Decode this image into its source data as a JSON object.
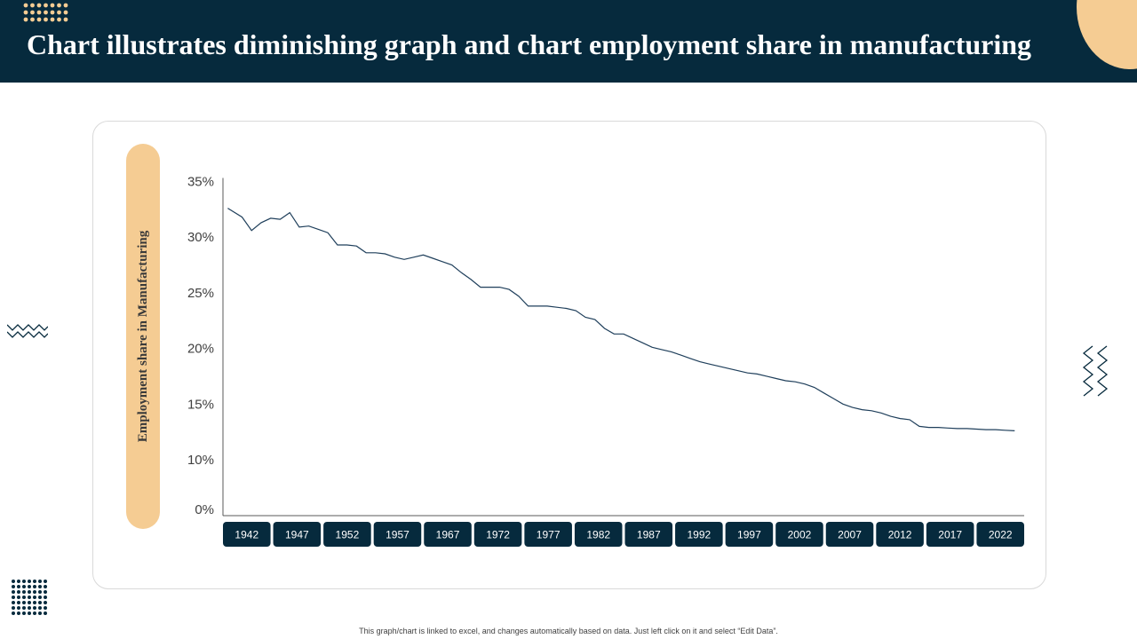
{
  "header": {
    "title": "Chart illustrates diminishing graph and chart employment share in manufacturing"
  },
  "footer": {
    "note": "This graph/chart is linked to excel, and changes automatically based on data. Just left click on it and select “Edit Data”."
  },
  "colors": {
    "header_bg": "#062a3d",
    "accent": "#f5cc93",
    "line": "#1f3f5b",
    "tick_box": "#062a3d"
  },
  "icons": {
    "top_dots": "dot-grid-icon",
    "left_zigzag": "zigzag-icon",
    "right_zigzag": "zigzag-vertical-icon",
    "bottom_dots": "dot-grid-icon"
  },
  "chart_data": {
    "type": "line",
    "ylabel": "Employment  share in Manufacturing",
    "xlabel": "",
    "ylim": [
      0,
      35
    ],
    "xlim": [
      1940,
      2024
    ],
    "y_ticks": [
      {
        "value": 0,
        "label": "0%"
      },
      {
        "value": 10,
        "label": "10%"
      },
      {
        "value": 15,
        "label": "15%"
      },
      {
        "value": 20,
        "label": "20%"
      },
      {
        "value": 25,
        "label": "25%"
      },
      {
        "value": 30,
        "label": "30%"
      },
      {
        "value": 35,
        "label": "35%"
      }
    ],
    "x_ticks": [
      "1942",
      "1947",
      "1952",
      "1957",
      "1967",
      "1972",
      "1977",
      "1982",
      "1987",
      "1992",
      "1997",
      "2002",
      "2007",
      "2012",
      "2017",
      "2022"
    ],
    "grid": false,
    "legend": "none",
    "series": [
      {
        "x": [
          1940.5,
          1942,
          1943,
          1944,
          1945,
          1946,
          1947,
          1948,
          1949,
          1950,
          1951,
          1952,
          1953,
          1954,
          1955,
          1956,
          1957,
          1958,
          1959,
          1960,
          1961,
          1962,
          1963,
          1964,
          1965,
          1966,
          1967,
          1968,
          1969,
          1970,
          1971,
          1972,
          1973,
          1974,
          1975,
          1976,
          1977,
          1978,
          1979,
          1980,
          1981,
          1982,
          1983,
          1984,
          1985,
          1986,
          1987,
          1988,
          1989,
          1990,
          1991,
          1992,
          1993,
          1994,
          1995,
          1996,
          1997,
          1998,
          1999,
          2000,
          2001,
          2002,
          2003,
          2004,
          2005,
          2006,
          2007,
          2008,
          2009,
          2010,
          2011,
          2012,
          2013,
          2014,
          2015,
          2016,
          2017,
          2018,
          2019,
          2020,
          2021,
          2022,
          2023
        ],
        "values": [
          32.6,
          31.8,
          30.6,
          31.3,
          31.7,
          31.6,
          32.2,
          30.9,
          31.0,
          30.7,
          30.4,
          29.3,
          29.3,
          29.2,
          28.6,
          28.6,
          28.5,
          28.2,
          28.0,
          28.2,
          28.4,
          28.1,
          27.8,
          27.5,
          26.8,
          26.2,
          25.5,
          25.5,
          25.5,
          25.3,
          24.7,
          23.8,
          23.8,
          23.8,
          23.7,
          23.6,
          23.4,
          22.8,
          22.6,
          21.8,
          21.3,
          21.3,
          20.9,
          20.5,
          20.1,
          19.9,
          19.7,
          19.4,
          19.1,
          18.8,
          18.6,
          18.4,
          18.2,
          18.0,
          17.8,
          17.7,
          17.5,
          17.3,
          17.1,
          17.0,
          16.8,
          16.5,
          16.0,
          15.5,
          15.0,
          14.7,
          14.5,
          14.4,
          14.2,
          13.9,
          13.7,
          13.6,
          13.0,
          12.9,
          12.9,
          12.85,
          12.8,
          12.8,
          12.75,
          12.7,
          12.7,
          12.65,
          12.6
        ]
      }
    ]
  }
}
